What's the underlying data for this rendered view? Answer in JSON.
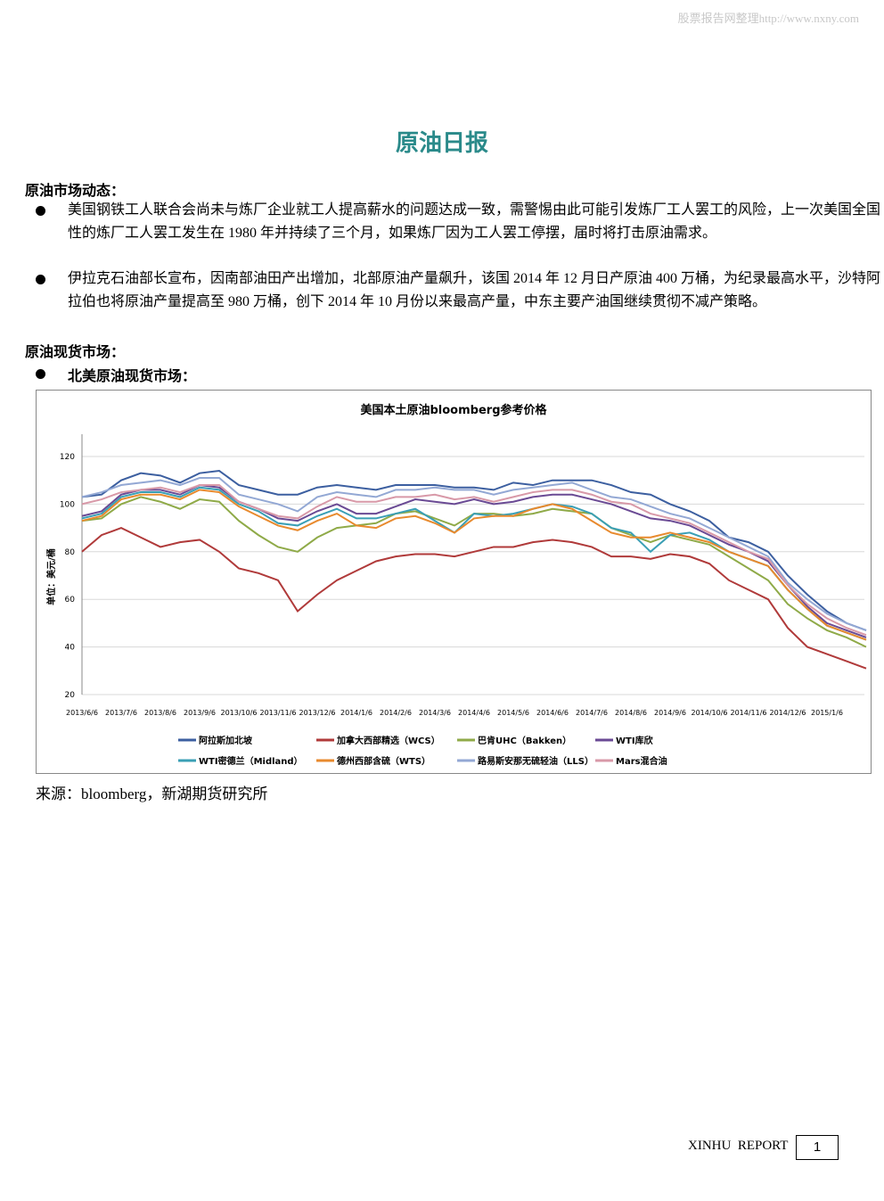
{
  "watermark": "股票报告网整理http://www.nxny.com",
  "title": "原油日报",
  "section1": {
    "heading": "原油市场动态：",
    "bullets": [
      "美国钢铁工人联合会尚未与炼厂企业就工人提高薪水的问题达成一致，需警惕由此可能引发炼厂工人罢工的风险，上一次美国全国性的炼厂工人罢工发生在 1980 年并持续了三个月，如果炼厂因为工人罢工停摆，届时将打击原油需求。",
      "伊拉克石油部长宣布，因南部油田产出增加，北部原油产量飙升，该国 2014 年 12 月日产原油 400 万桶，为纪录最高水平，沙特阿拉伯也将原油产量提高至 980 万桶，创下 2014 年 10 月份以来最高产量，中东主要产油国继续贯彻不减产策略。"
    ]
  },
  "section2": {
    "heading": "原油现货市场：",
    "subheading": "北美原油现货市场："
  },
  "chart_data": {
    "type": "line",
    "title": "美国本土原油bloomberg参考价格",
    "y_label": "单位：美元/桶",
    "categories": [
      "2013/6/6",
      null,
      "2013/7/6",
      null,
      "2013/8/6",
      null,
      "2013/9/6",
      null,
      "2013/10/6",
      null,
      "2013/11/6",
      null,
      "2013/12/6",
      null,
      "2014/1/6",
      null,
      "2014/2/6",
      null,
      "2014/3/6",
      null,
      "2014/4/6",
      null,
      "2014/5/6",
      null,
      "2014/6/6",
      null,
      "2014/7/6",
      null,
      "2014/8/6",
      null,
      "2014/9/6",
      null,
      "2014/10/6",
      null,
      "2014/11/6",
      null,
      "2014/12/6",
      null,
      "2015/1/6",
      null,
      null
    ],
    "ylim": [
      20,
      120
    ],
    "yticks": [
      20,
      40,
      60,
      80,
      100,
      120
    ],
    "grid": true,
    "series": [
      {
        "name": "阿拉斯加北坡",
        "color": "#3c5fa0",
        "values": [
          103,
          104,
          110,
          113,
          112,
          109,
          113,
          114,
          108,
          106,
          104,
          104,
          107,
          108,
          107,
          106,
          108,
          108,
          108,
          107,
          107,
          106,
          109,
          108,
          110,
          110,
          110,
          108,
          105,
          104,
          100,
          97,
          93,
          86,
          84,
          80,
          70,
          62,
          55,
          50,
          47
        ]
      },
      {
        "name": "加拿大西部精选（WCS）",
        "color": "#b03a3a",
        "values": [
          80,
          87,
          90,
          86,
          82,
          84,
          85,
          80,
          73,
          71,
          68,
          55,
          62,
          68,
          72,
          76,
          78,
          79,
          79,
          78,
          80,
          82,
          82,
          84,
          85,
          84,
          82,
          78,
          78,
          77,
          79,
          78,
          75,
          68,
          64,
          60,
          48,
          40,
          37,
          34,
          31
        ]
      },
      {
        "name": "巴肯UHC（Bakken）",
        "color": "#8faa48",
        "values": [
          93,
          94,
          100,
          103,
          101,
          98,
          102,
          101,
          93,
          87,
          82,
          80,
          86,
          90,
          91,
          92,
          96,
          97,
          94,
          91,
          96,
          96,
          95,
          96,
          98,
          97,
          96,
          90,
          87,
          84,
          87,
          85,
          83,
          78,
          73,
          68,
          58,
          52,
          47,
          44,
          40
        ]
      },
      {
        "name": "WTI库欣",
        "color": "#6a4a94",
        "values": [
          95,
          97,
          104,
          106,
          106,
          104,
          108,
          107,
          101,
          98,
          94,
          93,
          97,
          100,
          96,
          96,
          99,
          102,
          101,
          100,
          102,
          100,
          101,
          103,
          104,
          104,
          102,
          100,
          97,
          94,
          93,
          91,
          87,
          83,
          80,
          76,
          66,
          57,
          50,
          47,
          44
        ]
      },
      {
        "name": "WTI密德兰（Midland）",
        "color": "#3a9fb5",
        "values": [
          94,
          96,
          103,
          105,
          105,
          103,
          107,
          106,
          100,
          97,
          92,
          91,
          95,
          98,
          94,
          94,
          96,
          98,
          93,
          88,
          96,
          95,
          96,
          98,
          100,
          99,
          96,
          90,
          88,
          80,
          87,
          88,
          85,
          80,
          77,
          74,
          64,
          56,
          49,
          46,
          43
        ]
      },
      {
        "name": "德州西部含硫（WTS）",
        "color": "#e88a2e",
        "values": [
          93,
          95,
          102,
          104,
          104,
          102,
          106,
          105,
          99,
          95,
          91,
          89,
          93,
          96,
          91,
          90,
          94,
          95,
          92,
          88,
          94,
          95,
          95,
          98,
          100,
          98,
          93,
          88,
          86,
          86,
          88,
          86,
          84,
          80,
          77,
          74,
          64,
          56,
          49,
          46,
          43
        ]
      },
      {
        "name": "路易斯安那无硫轻油（LLS）",
        "color": "#93a8d4",
        "values": [
          103,
          105,
          108,
          109,
          110,
          108,
          111,
          111,
          104,
          102,
          100,
          97,
          103,
          105,
          104,
          103,
          106,
          106,
          107,
          106,
          106,
          104,
          106,
          107,
          108,
          109,
          106,
          103,
          102,
          99,
          96,
          94,
          90,
          86,
          82,
          78,
          67,
          60,
          54,
          50,
          47
        ]
      },
      {
        "name": "Mars混合油",
        "color": "#d899a8",
        "values": [
          100,
          102,
          105,
          106,
          107,
          105,
          108,
          108,
          101,
          98,
          95,
          94,
          99,
          103,
          101,
          101,
          103,
          103,
          104,
          102,
          103,
          101,
          103,
          105,
          106,
          106,
          104,
          101,
          100,
          96,
          94,
          92,
          88,
          84,
          80,
          77,
          66,
          58,
          52,
          48,
          45
        ]
      }
    ]
  },
  "source": "来源：bloomberg，新湖期货研究所",
  "footer": {
    "brand": "XINHU  REPORT",
    "page": 1
  }
}
